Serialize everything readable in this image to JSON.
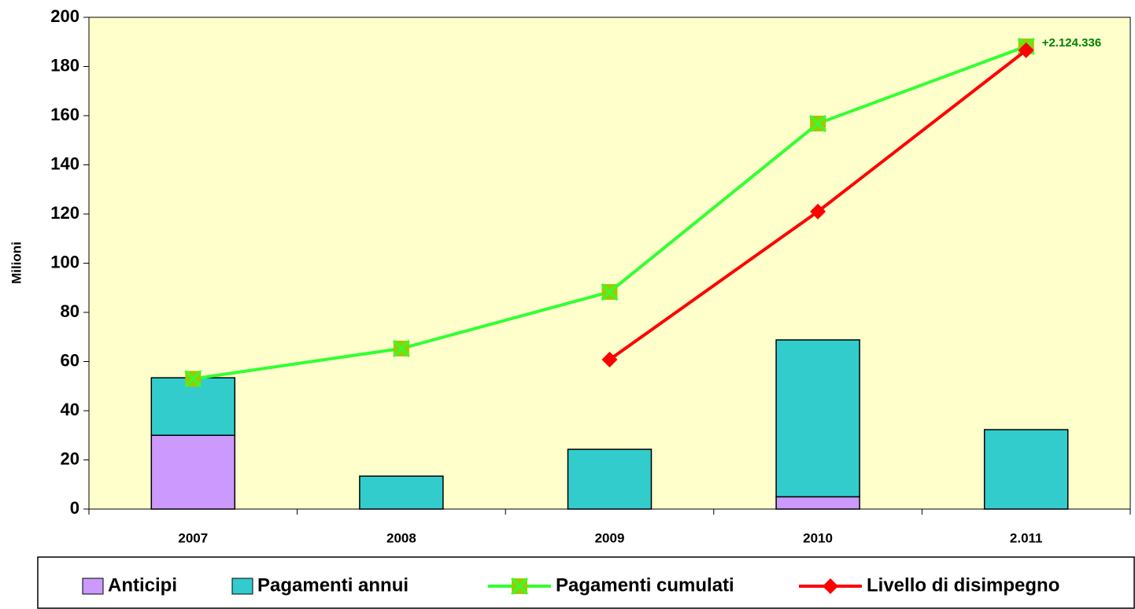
{
  "chart_data": {
    "type": "bar_line",
    "y_label": "Milioni",
    "categories": [
      "2007",
      "2008",
      "2009",
      "2010",
      "2.011"
    ],
    "series": [
      {
        "name": "Anticipi",
        "kind": "bar",
        "color": "#cc99ff",
        "values": [
          30,
          0,
          0,
          5,
          0
        ]
      },
      {
        "name": "Pagamenti annui",
        "kind": "bar",
        "color": "#33cccc",
        "values": [
          23.4,
          13.4,
          24.3,
          63.8,
          32.3
        ]
      },
      {
        "name": "Pagamenti cumulati",
        "kind": "line",
        "color": "#33ff33",
        "marker": "x-square",
        "values": [
          53,
          65.3,
          88.3,
          156.8,
          188.2
        ]
      },
      {
        "name": "Livello di disimpegno",
        "kind": "line",
        "color": "#ff0000",
        "marker": "diamond",
        "values": [
          null,
          null,
          60.8,
          121,
          186.6
        ]
      }
    ],
    "annotation": "+2.124.336",
    "ylim": [
      0,
      200
    ],
    "yticks": [
      0,
      20,
      40,
      60,
      80,
      100,
      120,
      140,
      160,
      180,
      200
    ],
    "plot_background": "#ffffcc"
  }
}
